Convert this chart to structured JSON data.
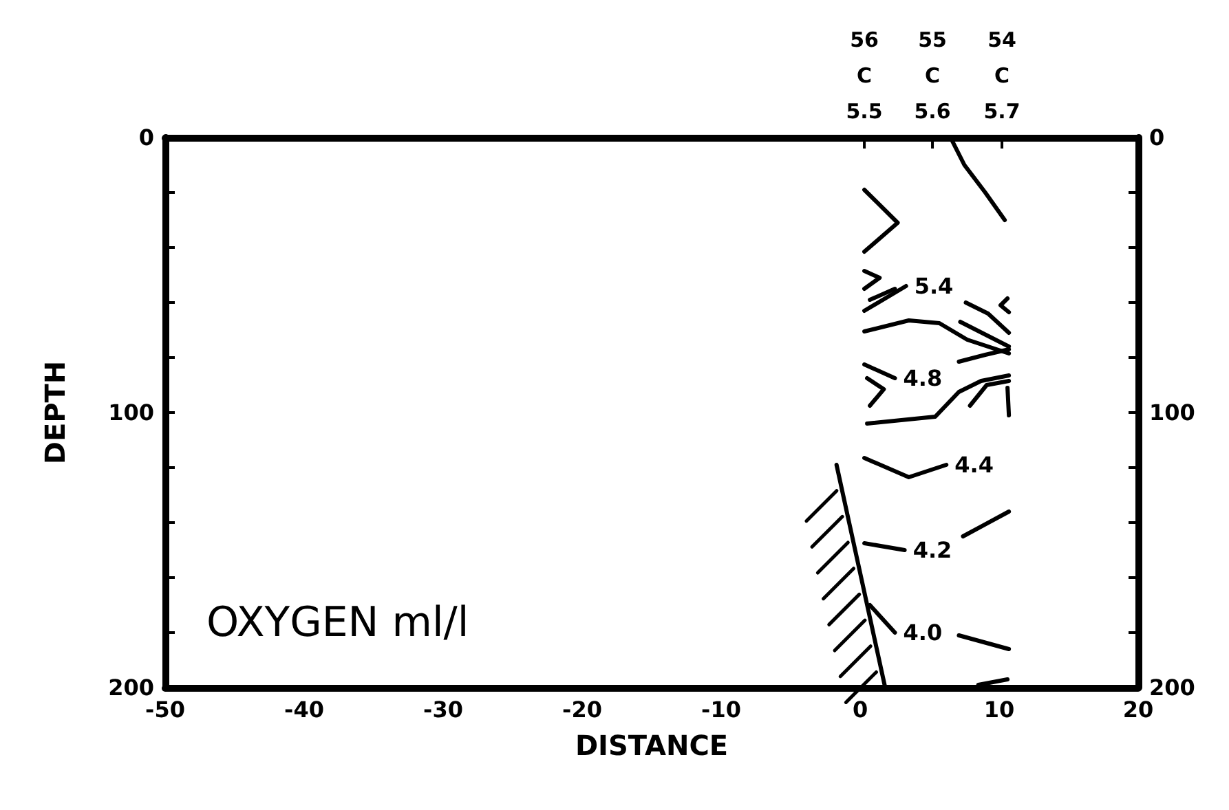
{
  "chart_data": {
    "type": "line",
    "xlabel": "DISTANCE",
    "ylabel": "DEPTH",
    "xlim": [
      -50,
      20
    ],
    "xticks": [
      -50,
      -40,
      -30,
      -20,
      -10,
      0,
      10,
      20
    ],
    "ylim": [
      200,
      0
    ],
    "yticks": [
      0,
      {
        "value": 20,
        "label": null
      },
      {
        "value": 40,
        "label": null
      },
      {
        "value": 60,
        "label": null
      },
      {
        "value": 80,
        "label": null
      },
      100,
      {
        "value": 120,
        "label": null
      },
      {
        "value": 140,
        "label": null
      },
      {
        "value": 160,
        "label": null
      },
      {
        "value": 180,
        "label": null
      },
      200
    ],
    "y2lim": [
      200,
      0
    ],
    "y2ticks": [
      0,
      {
        "value": 20,
        "label": null
      },
      {
        "value": 40,
        "label": null
      },
      {
        "value": 60,
        "label": null
      },
      {
        "value": 80,
        "label": null
      },
      100,
      {
        "value": 120,
        "label": null
      },
      {
        "value": 140,
        "label": null
      },
      {
        "value": 160,
        "label": null
      },
      {
        "value": 180,
        "label": null
      },
      200
    ],
    "annotations": [
      "OXYGEN ml/l",
      {
        "text": "56\nC\n5.5",
        "x": 0.3
      },
      {
        "text": "55\nC\n5.6",
        "x": 5.2
      },
      {
        "text": "54\nC\n5.7",
        "x": 10.2
      }
    ],
    "series": [
      {
        "color": "#000000",
        "x": [
          6.5,
          7.5,
          9,
          10.4
        ],
        "values": [
          0,
          10,
          20,
          30
        ]
      },
      {
        "color": "#000000",
        "x": [
          0.3,
          2.7,
          0.3
        ],
        "values": [
          19,
          31,
          41.5
        ]
      },
      {
        "color": "#000000",
        "x": [
          0.3,
          1.4,
          0.3
        ],
        "values": [
          48.5,
          51,
          55
        ]
      },
      {
        "name": "5.4",
        "color": "#000000",
        "x": [
          0.3,
          3.3
        ],
        "values": [
          63,
          54
        ]
      },
      {
        "color": "#000000",
        "x": [
          0.7,
          2.5
        ],
        "values": [
          59,
          55
        ]
      },
      {
        "color": "#000000",
        "x": [
          7.6,
          9.2,
          10.7
        ],
        "values": [
          60,
          64,
          71
        ]
      },
      {
        "color": "#000000",
        "x": [
          10.6,
          10.1,
          10.7
        ],
        "values": [
          58.5,
          61,
          63.5
        ]
      },
      {
        "color": "#000000",
        "x": [
          0.3,
          3.5,
          5.7,
          7.7,
          10.7
        ],
        "values": [
          70.5,
          66.5,
          67.5,
          73.5,
          78.5
        ]
      },
      {
        "color": "#000000",
        "x": [
          7.2,
          10.7
        ],
        "values": [
          67,
          76
        ]
      },
      {
        "color": "#000000",
        "x": [
          7.1,
          9,
          10.7
        ],
        "values": [
          81.5,
          79,
          77
        ]
      },
      {
        "name": "4.8",
        "color": "#000000",
        "x": [
          0.3,
          2.5
        ],
        "values": [
          82.5,
          87.5
        ]
      },
      {
        "color": "#000000",
        "x": [
          0.5,
          1.7,
          0.7
        ],
        "values": [
          87.5,
          91.5,
          97.5
        ]
      },
      {
        "color": "#000000",
        "x": [
          0.5,
          5.4,
          7.1,
          8.7,
          10.7
        ],
        "values": [
          104,
          101.5,
          92.5,
          88.5,
          86.5
        ]
      },
      {
        "color": "#000000",
        "x": [
          7.9,
          9.1,
          10.7
        ],
        "values": [
          97.5,
          90,
          88.5
        ]
      },
      {
        "color": "#000000",
        "x": [
          10.6,
          10.7
        ],
        "values": [
          91,
          101
        ]
      },
      {
        "name": "4.4",
        "color": "#000000",
        "x": [
          0.3,
          3.5,
          6.2
        ],
        "values": [
          116.5,
          123.5,
          119
        ]
      },
      {
        "name": "4.2",
        "color": "#000000",
        "x": [
          0.3,
          3.2
        ],
        "values": [
          147.5,
          150
        ]
      },
      {
        "color": "#000000",
        "x": [
          7.4,
          10.7
        ],
        "values": [
          145,
          136
        ]
      },
      {
        "name": "4.0",
        "color": "#000000",
        "x": [
          0.7,
          2.5
        ],
        "values": [
          170,
          180
        ]
      },
      {
        "color": "#000000",
        "x": [
          7.1,
          10.7
        ],
        "values": [
          181,
          186
        ]
      },
      {
        "color": "#000000",
        "x": [
          8.5,
          10.6
        ],
        "values": [
          199,
          197
        ]
      },
      {
        "color": "#000000",
        "x": [
          -1.7,
          1.8
        ],
        "values": [
          119,
          200
        ]
      }
    ]
  }
}
